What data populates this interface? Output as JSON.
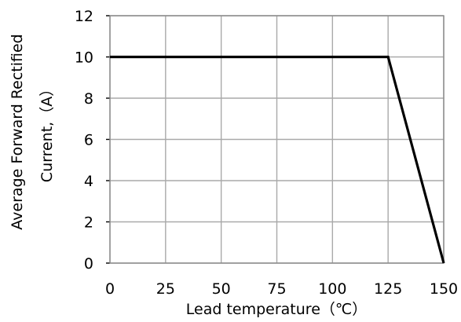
{
  "chart_data": {
    "type": "line",
    "title": "",
    "xlabel": "Lead temperature（℃）",
    "ylabel_lines": [
      "Average  Forward  Rectified",
      "Current,（A）"
    ],
    "x_ticks": [
      "0",
      "25",
      "50",
      "75",
      "100",
      "125",
      "150"
    ],
    "y_ticks": [
      "0",
      "2",
      "4",
      "6",
      "8",
      "10",
      "12"
    ],
    "xlim": [
      0,
      150
    ],
    "ylim": [
      0,
      12
    ],
    "grid": true,
    "legend": "none",
    "series": [
      {
        "x": [
          0,
          125,
          150
        ],
        "y": [
          10,
          10,
          0
        ],
        "color": "#000000"
      }
    ]
  }
}
